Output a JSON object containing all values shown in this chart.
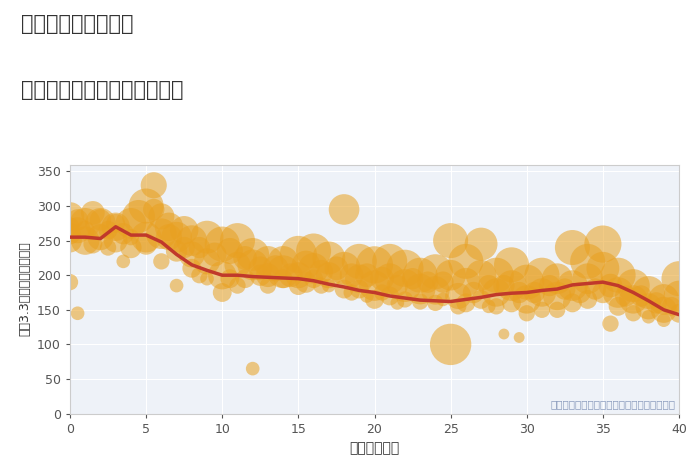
{
  "title_line1": "東京都地下鉄成増駅",
  "title_line2": "築年数別中古マンション価格",
  "xlabel": "築年数（年）",
  "ylabel": "坪（3.3㎡）単価（万円）",
  "note": "円の大きさは、取引のあった物件面積を示す",
  "xlim": [
    0,
    40
  ],
  "ylim": [
    0,
    360
  ],
  "xticks": [
    0,
    5,
    10,
    15,
    20,
    25,
    30,
    35,
    40
  ],
  "yticks": [
    0,
    50,
    100,
    150,
    200,
    250,
    300,
    350
  ],
  "background_color": "#eef2f8",
  "scatter_color": "#E8A020",
  "scatter_alpha": 0.55,
  "line_color": "#c0392b",
  "line_width": 2.5,
  "trend_x": [
    0,
    1,
    2,
    3,
    4,
    5,
    6,
    7,
    8,
    9,
    10,
    11,
    12,
    13,
    14,
    15,
    16,
    17,
    18,
    19,
    20,
    21,
    22,
    23,
    24,
    25,
    26,
    27,
    28,
    29,
    30,
    31,
    32,
    33,
    34,
    35,
    36,
    37,
    38,
    39,
    40
  ],
  "trend_y": [
    255,
    255,
    253,
    270,
    258,
    258,
    248,
    230,
    215,
    207,
    200,
    200,
    198,
    197,
    196,
    195,
    192,
    187,
    183,
    178,
    175,
    170,
    167,
    164,
    163,
    162,
    165,
    168,
    172,
    174,
    175,
    178,
    180,
    186,
    188,
    190,
    185,
    175,
    163,
    150,
    143
  ],
  "scatter_data": [
    [
      0,
      190,
      25
    ],
    [
      0,
      250,
      40
    ],
    [
      0,
      270,
      30
    ],
    [
      0,
      285,
      50
    ],
    [
      0,
      260,
      35
    ],
    [
      0.5,
      265,
      45
    ],
    [
      0.5,
      280,
      35
    ],
    [
      0.5,
      145,
      20
    ],
    [
      1,
      250,
      50
    ],
    [
      1,
      275,
      55
    ],
    [
      1,
      265,
      30
    ],
    [
      1.5,
      290,
      40
    ],
    [
      1.5,
      245,
      30
    ],
    [
      2,
      255,
      45
    ],
    [
      2,
      275,
      55
    ],
    [
      2,
      280,
      35
    ],
    [
      2.5,
      265,
      30
    ],
    [
      2.5,
      240,
      25
    ],
    [
      3,
      270,
      50
    ],
    [
      3,
      250,
      40
    ],
    [
      3,
      275,
      30
    ],
    [
      3.5,
      260,
      35
    ],
    [
      3.5,
      220,
      20
    ],
    [
      4,
      240,
      35
    ],
    [
      4,
      255,
      25
    ],
    [
      4,
      275,
      55
    ],
    [
      4.5,
      285,
      60
    ],
    [
      5,
      300,
      65
    ],
    [
      5,
      245,
      35
    ],
    [
      5,
      255,
      55
    ],
    [
      5.5,
      330,
      45
    ],
    [
      5.5,
      295,
      35
    ],
    [
      6,
      260,
      55
    ],
    [
      6,
      285,
      45
    ],
    [
      6,
      220,
      25
    ],
    [
      6.5,
      255,
      45
    ],
    [
      6.5,
      270,
      50
    ],
    [
      7,
      255,
      55
    ],
    [
      7,
      235,
      35
    ],
    [
      7,
      185,
      20
    ],
    [
      7.5,
      265,
      50
    ],
    [
      7.5,
      240,
      35
    ],
    [
      8,
      250,
      55
    ],
    [
      8,
      230,
      45
    ],
    [
      8,
      210,
      30
    ],
    [
      8.5,
      240,
      35
    ],
    [
      8.5,
      200,
      25
    ],
    [
      9,
      255,
      60
    ],
    [
      9,
      220,
      45
    ],
    [
      9,
      195,
      20
    ],
    [
      9.5,
      230,
      40
    ],
    [
      10,
      245,
      65
    ],
    [
      10,
      200,
      50
    ],
    [
      10,
      175,
      30
    ],
    [
      10.5,
      235,
      45
    ],
    [
      10.5,
      195,
      30
    ],
    [
      11,
      250,
      65
    ],
    [
      11,
      215,
      45
    ],
    [
      11,
      185,
      25
    ],
    [
      11.5,
      225,
      40
    ],
    [
      11.5,
      195,
      30
    ],
    [
      12,
      215,
      55
    ],
    [
      12,
      230,
      60
    ],
    [
      12,
      65,
      20
    ],
    [
      12.5,
      200,
      35
    ],
    [
      12.5,
      210,
      40
    ],
    [
      13,
      220,
      55
    ],
    [
      13,
      200,
      40
    ],
    [
      13,
      185,
      25
    ],
    [
      13.5,
      210,
      45
    ],
    [
      14,
      205,
      60
    ],
    [
      14,
      220,
      55
    ],
    [
      14,
      195,
      30
    ],
    [
      14.5,
      200,
      40
    ],
    [
      15,
      230,
      70
    ],
    [
      15,
      200,
      45
    ],
    [
      15,
      185,
      30
    ],
    [
      15.5,
      215,
      50
    ],
    [
      15.5,
      190,
      35
    ],
    [
      16,
      235,
      65
    ],
    [
      16,
      210,
      55
    ],
    [
      16,
      195,
      30
    ],
    [
      16.5,
      205,
      40
    ],
    [
      16.5,
      185,
      25
    ],
    [
      17,
      225,
      60
    ],
    [
      17,
      200,
      45
    ],
    [
      17,
      185,
      20
    ],
    [
      17.5,
      210,
      40
    ],
    [
      18,
      295,
      55
    ],
    [
      18,
      210,
      60
    ],
    [
      18,
      180,
      30
    ],
    [
      18.5,
      200,
      40
    ],
    [
      18.5,
      175,
      25
    ],
    [
      19,
      220,
      65
    ],
    [
      19,
      195,
      50
    ],
    [
      19,
      180,
      30
    ],
    [
      19.5,
      200,
      40
    ],
    [
      19.5,
      170,
      20
    ],
    [
      20,
      215,
      70
    ],
    [
      20,
      185,
      55
    ],
    [
      20,
      165,
      30
    ],
    [
      20.5,
      195,
      40
    ],
    [
      20.5,
      175,
      25
    ],
    [
      21,
      220,
      65
    ],
    [
      21,
      195,
      55
    ],
    [
      21,
      170,
      30
    ],
    [
      21.5,
      185,
      35
    ],
    [
      21.5,
      160,
      20
    ],
    [
      22,
      210,
      70
    ],
    [
      22,
      185,
      60
    ],
    [
      22,
      165,
      25
    ],
    [
      22.5,
      195,
      35
    ],
    [
      23,
      200,
      65
    ],
    [
      23,
      180,
      55
    ],
    [
      23,
      162,
      25
    ],
    [
      23.5,
      190,
      35
    ],
    [
      24,
      205,
      65
    ],
    [
      24,
      178,
      50
    ],
    [
      24,
      160,
      25
    ],
    [
      24.5,
      190,
      35
    ],
    [
      24.5,
      165,
      20
    ],
    [
      25,
      250,
      65
    ],
    [
      25,
      200,
      55
    ],
    [
      25,
      100,
      80
    ],
    [
      25.5,
      170,
      45
    ],
    [
      25.5,
      155,
      25
    ],
    [
      26,
      220,
      65
    ],
    [
      26,
      190,
      50
    ],
    [
      26,
      160,
      30
    ],
    [
      26.5,
      175,
      35
    ],
    [
      27,
      245,
      60
    ],
    [
      27,
      200,
      55
    ],
    [
      27,
      165,
      30
    ],
    [
      27.5,
      185,
      35
    ],
    [
      27.5,
      155,
      20
    ],
    [
      28,
      200,
      65
    ],
    [
      28,
      175,
      50
    ],
    [
      28,
      155,
      25
    ],
    [
      28.5,
      185,
      35
    ],
    [
      28.5,
      115,
      15
    ],
    [
      29,
      215,
      65
    ],
    [
      29,
      185,
      55
    ],
    [
      29,
      160,
      30
    ],
    [
      29.5,
      175,
      35
    ],
    [
      29.5,
      110,
      15
    ],
    [
      30,
      190,
      65
    ],
    [
      30,
      165,
      50
    ],
    [
      30,
      145,
      25
    ],
    [
      30.5,
      175,
      35
    ],
    [
      31,
      200,
      65
    ],
    [
      31,
      175,
      50
    ],
    [
      31,
      150,
      25
    ],
    [
      31.5,
      185,
      35
    ],
    [
      32,
      195,
      55
    ],
    [
      32,
      170,
      50
    ],
    [
      32,
      150,
      25
    ],
    [
      32.5,
      180,
      35
    ],
    [
      33,
      240,
      65
    ],
    [
      33,
      185,
      55
    ],
    [
      33,
      160,
      30
    ],
    [
      33.5,
      175,
      35
    ],
    [
      34,
      220,
      65
    ],
    [
      34,
      195,
      55
    ],
    [
      34,
      165,
      30
    ],
    [
      34.5,
      180,
      35
    ],
    [
      35,
      245,
      70
    ],
    [
      35,
      210,
      60
    ],
    [
      35,
      175,
      35
    ],
    [
      35.5,
      185,
      40
    ],
    [
      35.5,
      130,
      25
    ],
    [
      36,
      200,
      65
    ],
    [
      36,
      175,
      55
    ],
    [
      36,
      155,
      30
    ],
    [
      36.5,
      170,
      35
    ],
    [
      37,
      185,
      60
    ],
    [
      37,
      165,
      50
    ],
    [
      37,
      145,
      25
    ],
    [
      37.5,
      170,
      35
    ],
    [
      38,
      175,
      60
    ],
    [
      38,
      155,
      45
    ],
    [
      38,
      140,
      20
    ],
    [
      38.5,
      160,
      35
    ],
    [
      39,
      165,
      55
    ],
    [
      39,
      150,
      45
    ],
    [
      39,
      135,
      20
    ],
    [
      39.5,
      155,
      30
    ],
    [
      40,
      195,
      65
    ],
    [
      40,
      170,
      55
    ],
    [
      40,
      145,
      30
    ]
  ]
}
